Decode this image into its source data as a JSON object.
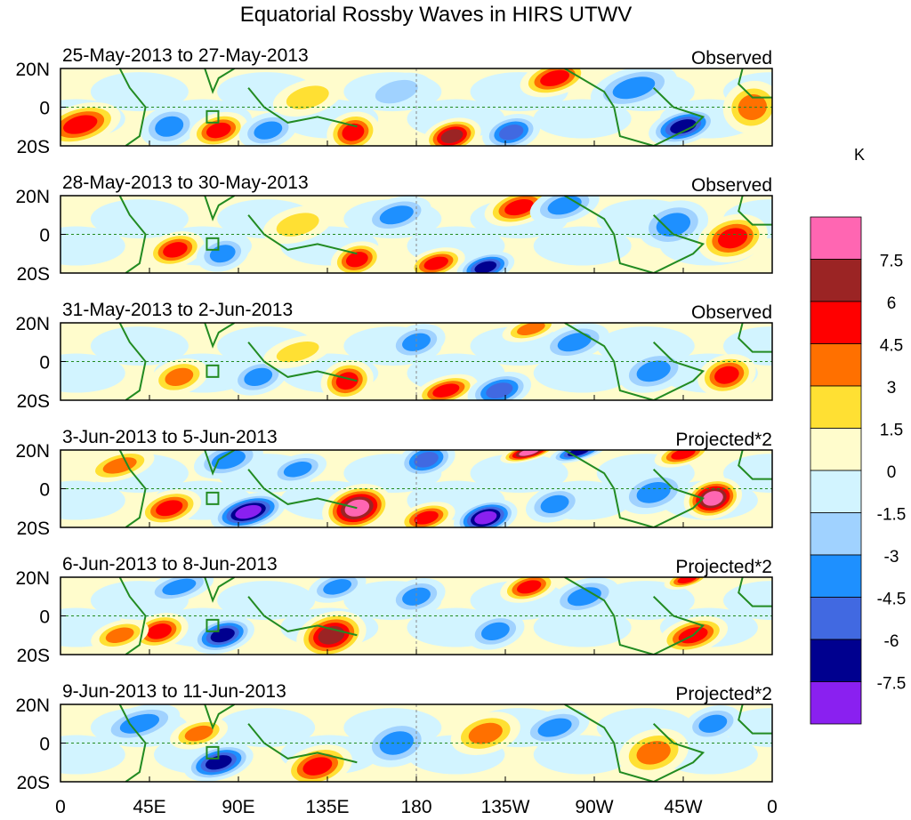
{
  "chart_data": {
    "type": "heatmap",
    "title": "Equatorial Rossby Waves in HIRS UTWV",
    "units": "K",
    "xticks": [
      "0",
      "45E",
      "90E",
      "135E",
      "180",
      "135W",
      "90W",
      "45W",
      "0"
    ],
    "yticks": [
      "20N",
      "0",
      "20S"
    ],
    "lat_range": [
      -20,
      20
    ],
    "lon_range": [
      0,
      360
    ],
    "levels": [
      "7.5",
      "6",
      "4.5",
      "3",
      "1.5",
      "0",
      "-1.5",
      "-3",
      "-4.5",
      "-6",
      "-7.5"
    ],
    "level_values": [
      -7.5,
      -6,
      -4.5,
      -3,
      -1.5,
      0,
      1.5,
      3,
      4.5,
      6,
      7.5
    ],
    "colors": [
      "#8a20f0",
      "#00008f",
      "#4169e1",
      "#1e90ff",
      "#a0d2ff",
      "#d2f4ff",
      "#fffccc",
      "#ffe033",
      "#ff7000",
      "#ff0000",
      "#9b2424",
      "#ff66b2"
    ],
    "panels": [
      {
        "date": "25-May-2013 to 27-May-2013",
        "type": "Observed",
        "blobs": [
          [
            10,
            -9,
            5,
            14,
            7
          ],
          [
            55,
            -10,
            -4,
            10,
            7
          ],
          [
            80,
            -12,
            5,
            10,
            6
          ],
          [
            105,
            -12,
            -3,
            10,
            6
          ],
          [
            148,
            -13,
            5,
            9,
            7
          ],
          [
            170,
            8,
            -2,
            12,
            6
          ],
          [
            198,
            -15,
            6,
            10,
            6
          ],
          [
            228,
            -13,
            -5,
            10,
            6
          ],
          [
            250,
            15,
            5,
            12,
            6
          ],
          [
            290,
            10,
            -3,
            15,
            7
          ],
          [
            315,
            -10,
            -6,
            12,
            6
          ],
          [
            350,
            0,
            4,
            10,
            9
          ],
          [
            125,
            5,
            2,
            12,
            6
          ]
        ]
      },
      {
        "date": "28-May-2013 to 30-May-2013",
        "type": "Observed",
        "blobs": [
          [
            58,
            -8,
            4.5,
            10,
            6
          ],
          [
            82,
            -10,
            -3,
            9,
            6
          ],
          [
            150,
            -13,
            5,
            9,
            6
          ],
          [
            170,
            10,
            -4,
            12,
            6
          ],
          [
            190,
            -15,
            5,
            10,
            5
          ],
          [
            215,
            -17,
            -7,
            10,
            5
          ],
          [
            232,
            14,
            4.5,
            12,
            6
          ],
          [
            255,
            15,
            -4,
            12,
            6
          ],
          [
            310,
            5,
            -3,
            12,
            8
          ],
          [
            340,
            -2,
            5,
            12,
            8
          ],
          [
            120,
            5,
            2,
            12,
            6
          ]
        ]
      },
      {
        "date": "31-May-2013 to 2-Jun-2013",
        "type": "Observed",
        "blobs": [
          [
            60,
            -8,
            4,
            10,
            6
          ],
          [
            100,
            -8,
            -3,
            10,
            6
          ],
          [
            145,
            -10,
            4.5,
            9,
            7
          ],
          [
            180,
            10,
            -4,
            10,
            6
          ],
          [
            195,
            -15,
            5,
            11,
            5
          ],
          [
            222,
            -15,
            -4.5,
            11,
            6
          ],
          [
            238,
            17,
            4,
            10,
            4
          ],
          [
            260,
            10,
            -3,
            12,
            6
          ],
          [
            300,
            -5,
            -3,
            12,
            7
          ],
          [
            337,
            -7,
            5,
            10,
            7
          ],
          [
            120,
            5,
            2,
            12,
            5
          ]
        ]
      },
      {
        "date": "3-Jun-2013 to 5-Jun-2013",
        "type": "Projected*2",
        "blobs": [
          [
            55,
            -10,
            5,
            11,
            6
          ],
          [
            95,
            -12,
            -8,
            13,
            6
          ],
          [
            85,
            15,
            -4,
            12,
            6
          ],
          [
            120,
            10,
            -4,
            10,
            5
          ],
          [
            150,
            -10,
            8,
            12,
            8
          ],
          [
            185,
            15,
            -4.5,
            10,
            6
          ],
          [
            185,
            -15,
            5,
            10,
            5
          ],
          [
            215,
            -15,
            -8,
            11,
            6
          ],
          [
            237,
            19,
            8,
            10,
            3
          ],
          [
            262,
            19,
            -7,
            10,
            3
          ],
          [
            250,
            -8,
            -3,
            10,
            6
          ],
          [
            300,
            -2,
            -4,
            12,
            7
          ],
          [
            315,
            18,
            5,
            10,
            4
          ],
          [
            330,
            -5,
            8,
            10,
            7
          ],
          [
            30,
            12,
            3,
            12,
            5
          ]
        ]
      },
      {
        "date": "6-Jun-2013 to 8-Jun-2013",
        "type": "Projected*2",
        "blobs": [
          [
            50,
            -8,
            4.5,
            10,
            6
          ],
          [
            82,
            -10,
            -7,
            11,
            6
          ],
          [
            60,
            15,
            -4,
            12,
            5
          ],
          [
            137,
            -10,
            6,
            12,
            8
          ],
          [
            140,
            15,
            -3,
            10,
            5
          ],
          [
            180,
            10,
            -4,
            10,
            6
          ],
          [
            220,
            -8,
            -3,
            10,
            6
          ],
          [
            237,
            15,
            5,
            10,
            5
          ],
          [
            265,
            10,
            -4,
            12,
            6
          ],
          [
            317,
            19,
            5,
            8,
            3
          ],
          [
            320,
            -10,
            5,
            12,
            6
          ],
          [
            30,
            -10,
            3,
            10,
            5
          ]
        ]
      },
      {
        "date": "9-Jun-2013 to 11-Jun-2013",
        "type": "Projected*2",
        "blobs": [
          [
            40,
            10,
            -3,
            14,
            6
          ],
          [
            70,
            5,
            3,
            10,
            5
          ],
          [
            80,
            -10,
            -6,
            12,
            6
          ],
          [
            130,
            -12,
            5,
            12,
            7
          ],
          [
            170,
            0,
            -3,
            12,
            8
          ],
          [
            215,
            5,
            3,
            12,
            7
          ],
          [
            250,
            8,
            -3,
            12,
            6
          ],
          [
            300,
            -5,
            3,
            12,
            8
          ],
          [
            330,
            10,
            -3,
            10,
            6
          ]
        ]
      }
    ]
  }
}
